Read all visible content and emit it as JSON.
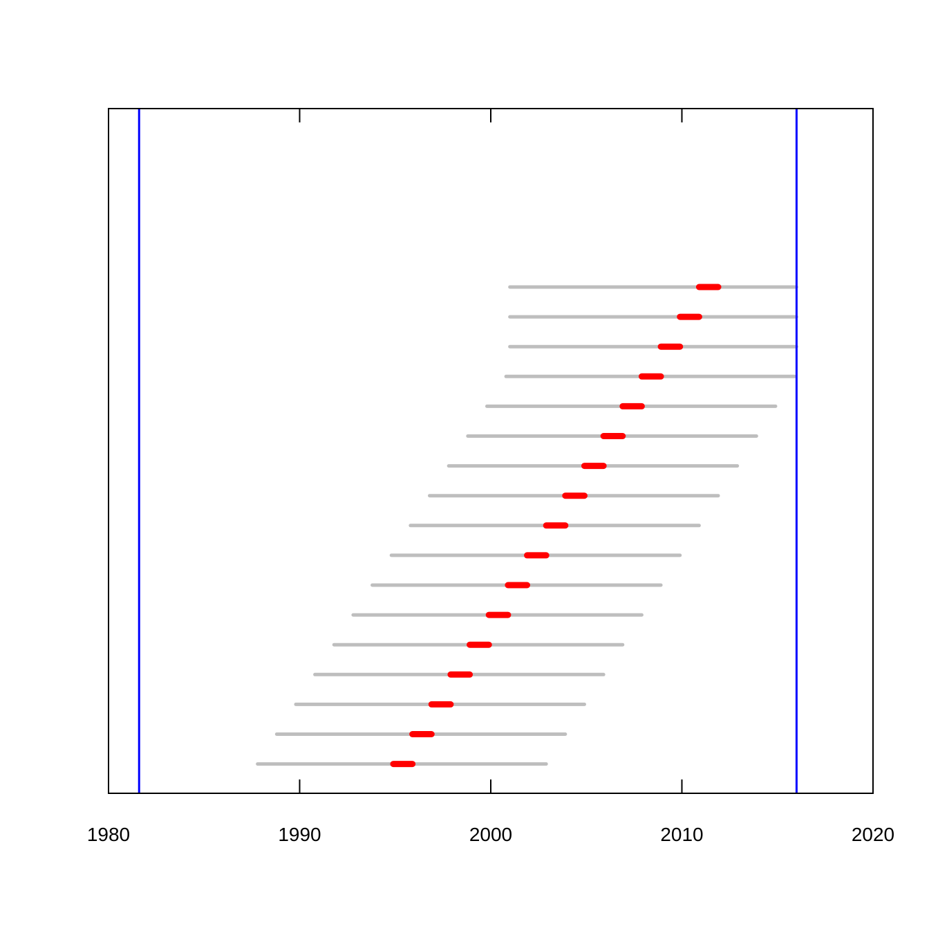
{
  "chart_data": {
    "type": "range",
    "title": "",
    "xlabel": "",
    "ylabel": "",
    "xlim": [
      1980,
      2020
    ],
    "x_ticks": [
      1980,
      1990,
      2000,
      2010,
      2020
    ],
    "y_ticks_labelled": false,
    "grid": false,
    "legend": "none",
    "vertical_lines": [
      {
        "x": 1981.6,
        "color": "#0000ff"
      },
      {
        "x": 2016.0,
        "color": "#0000ff"
      }
    ],
    "colors": {
      "range": "#bebebe",
      "highlight": "#ff0000",
      "axis": "#000000"
    },
    "series": [
      {
        "start": 1987.8,
        "end": 2002.9,
        "highlight_start": 1994.9,
        "highlight_end": 1995.9
      },
      {
        "start": 1988.8,
        "end": 2003.9,
        "highlight_start": 1995.9,
        "highlight_end": 1996.9
      },
      {
        "start": 1989.8,
        "end": 2004.9,
        "highlight_start": 1996.9,
        "highlight_end": 1997.9
      },
      {
        "start": 1990.8,
        "end": 2005.9,
        "highlight_start": 1997.9,
        "highlight_end": 1998.9
      },
      {
        "start": 1991.8,
        "end": 2006.9,
        "highlight_start": 1998.9,
        "highlight_end": 1999.9
      },
      {
        "start": 1992.8,
        "end": 2007.9,
        "highlight_start": 1999.9,
        "highlight_end": 2000.9
      },
      {
        "start": 1993.8,
        "end": 2008.9,
        "highlight_start": 2000.9,
        "highlight_end": 2001.9
      },
      {
        "start": 1994.8,
        "end": 2009.9,
        "highlight_start": 2001.9,
        "highlight_end": 2002.9
      },
      {
        "start": 1995.8,
        "end": 2010.9,
        "highlight_start": 2002.9,
        "highlight_end": 2003.9
      },
      {
        "start": 1996.8,
        "end": 2011.9,
        "highlight_start": 2003.9,
        "highlight_end": 2004.9
      },
      {
        "start": 1997.8,
        "end": 2012.9,
        "highlight_start": 2004.9,
        "highlight_end": 2005.9
      },
      {
        "start": 1998.8,
        "end": 2013.9,
        "highlight_start": 2005.9,
        "highlight_end": 2006.9
      },
      {
        "start": 1999.8,
        "end": 2014.9,
        "highlight_start": 2006.9,
        "highlight_end": 2007.9
      },
      {
        "start": 2000.8,
        "end": 2015.9,
        "highlight_start": 2007.9,
        "highlight_end": 2008.9
      },
      {
        "start": 2001.0,
        "end": 2016.0,
        "highlight_start": 2008.9,
        "highlight_end": 2009.9
      },
      {
        "start": 2001.0,
        "end": 2016.0,
        "highlight_start": 2009.9,
        "highlight_end": 2010.9
      },
      {
        "start": 2001.0,
        "end": 2016.0,
        "highlight_start": 2010.9,
        "highlight_end": 2011.9
      }
    ]
  }
}
